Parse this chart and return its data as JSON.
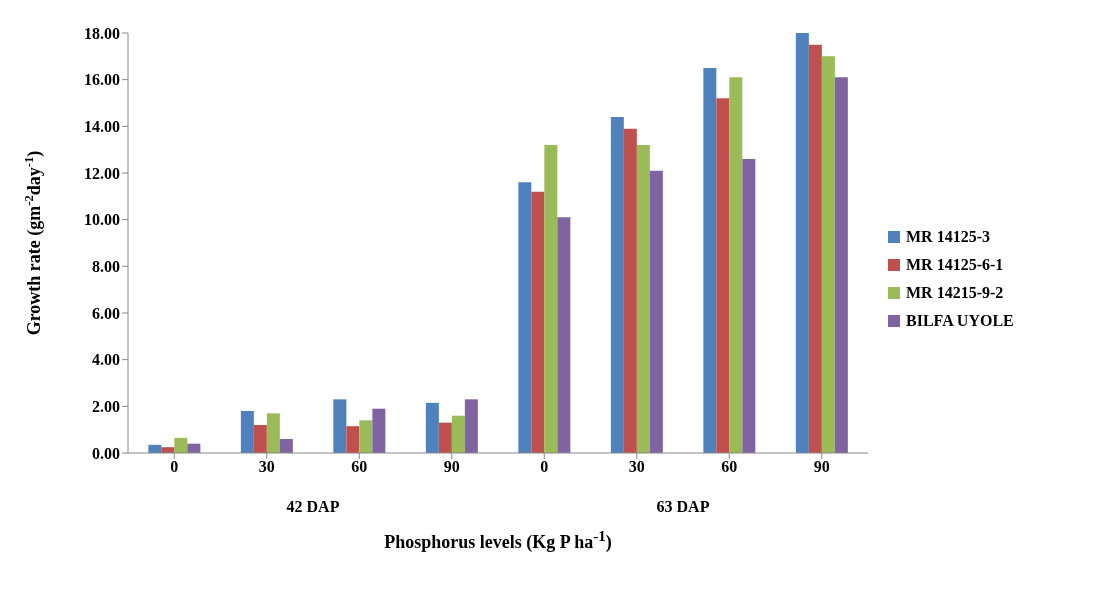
{
  "chart_data": {
    "type": "bar",
    "ylabel": "Growth rate (gm$^{-2}$day$^{-1}$)",
    "xlabel": "Phosphorus levels (Kg P ha$^{-1}$)",
    "categories": [
      "0",
      "30",
      "60",
      "90",
      "0",
      "30",
      "60",
      "90"
    ],
    "annotations": [
      "42 DAP",
      "63 DAP"
    ],
    "series": [
      {
        "name": "MR 14125-3",
        "color": "#4f81bd",
        "values": [
          0.35,
          1.8,
          2.3,
          2.15,
          11.6,
          14.4,
          16.5,
          18.0
        ]
      },
      {
        "name": "MR 14125-6-1",
        "color": "#c0504d",
        "values": [
          0.25,
          1.2,
          1.15,
          1.3,
          11.2,
          13.9,
          15.2,
          17.5
        ]
      },
      {
        "name": "MR 14215-9-2",
        "color": "#9bbb59",
        "values": [
          0.65,
          1.7,
          1.4,
          1.6,
          13.2,
          13.2,
          16.1,
          17.0
        ]
      },
      {
        "name": "BILFA UYOLE",
        "color": "#8064a2",
        "values": [
          0.4,
          0.6,
          1.9,
          2.3,
          10.1,
          12.1,
          12.6,
          16.1
        ]
      }
    ],
    "ylim": [
      0,
      18
    ],
    "yticks": [
      {
        "value": 0,
        "label": "0.00"
      },
      {
        "value": 2,
        "label": "2.00"
      },
      {
        "value": 4,
        "label": "4.00"
      },
      {
        "value": 6,
        "label": "6.00"
      },
      {
        "value": 8,
        "label": "8.00"
      },
      {
        "value": 10,
        "label": "10.00"
      },
      {
        "value": 12,
        "label": "12.00"
      },
      {
        "value": 14,
        "label": "14.00"
      },
      {
        "value": 16,
        "label": "16.00"
      },
      {
        "value": 18,
        "label": "18.00"
      }
    ],
    "grid": false,
    "legend": "right"
  }
}
